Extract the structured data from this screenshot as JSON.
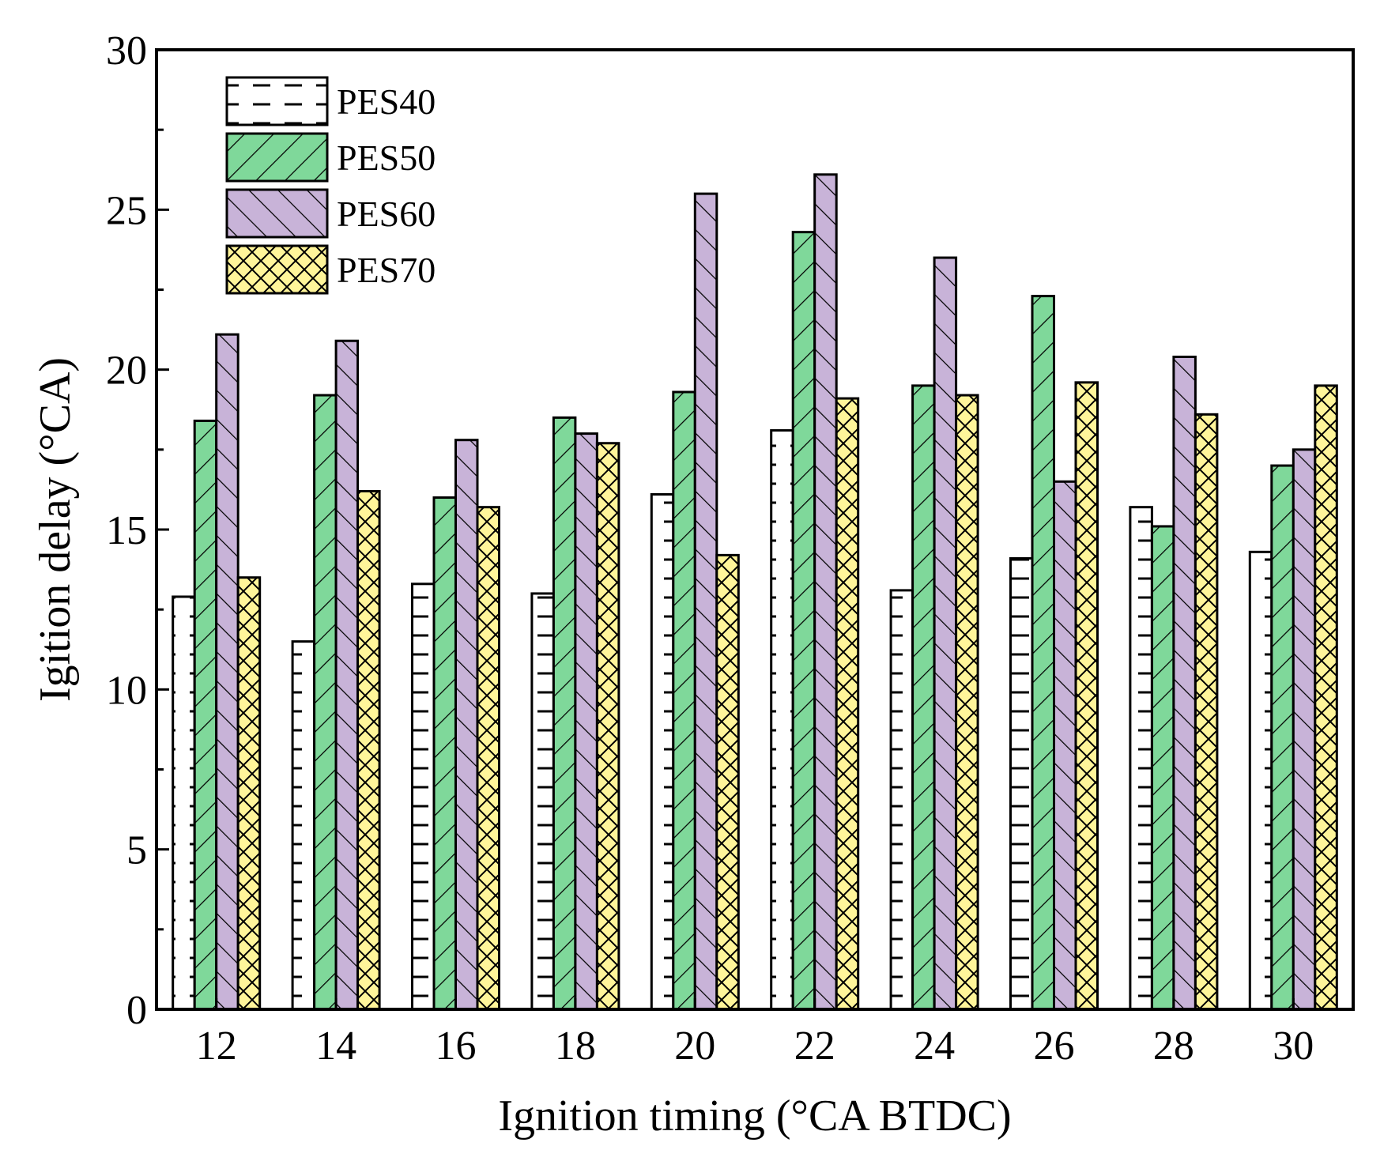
{
  "chart_data": {
    "type": "bar",
    "xlabel": "Ignition timing (°CA BTDC)",
    "ylabel": "Igition delay (°CA)",
    "ylim": [
      0,
      30
    ],
    "yticks": [
      0,
      5,
      10,
      15,
      20,
      25,
      30
    ],
    "categories": [
      "12",
      "14",
      "16",
      "18",
      "20",
      "22",
      "24",
      "26",
      "28",
      "30"
    ],
    "legend_position": "top-left",
    "grid": false,
    "series": [
      {
        "name": "PES40",
        "color": "#ffffff",
        "pattern": "dashes",
        "values": [
          12.9,
          11.5,
          13.3,
          13.0,
          16.1,
          18.1,
          13.1,
          14.1,
          15.7,
          14.3
        ]
      },
      {
        "name": "PES50",
        "color": "#7fd89a",
        "pattern": "forward-diagonal",
        "values": [
          18.4,
          19.2,
          16.0,
          18.5,
          19.3,
          24.3,
          19.5,
          22.3,
          15.1,
          17.0
        ]
      },
      {
        "name": "PES60",
        "color": "#c8b3d8",
        "pattern": "back-diagonal",
        "values": [
          21.1,
          20.9,
          17.8,
          18.0,
          25.5,
          26.1,
          23.5,
          16.5,
          20.4,
          17.5
        ]
      },
      {
        "name": "PES70",
        "color": "#fff59a",
        "pattern": "crosshatch",
        "values": [
          13.5,
          16.2,
          15.7,
          17.7,
          14.2,
          19.1,
          19.2,
          19.6,
          18.6,
          19.5
        ]
      }
    ]
  }
}
